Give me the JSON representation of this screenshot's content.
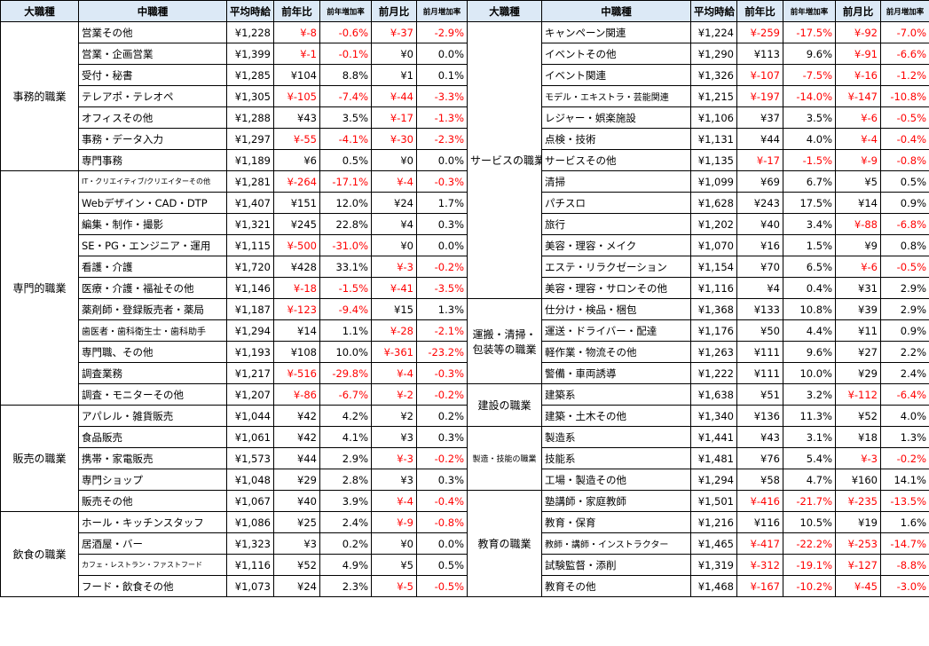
{
  "headers": {
    "major": "大職種",
    "minor": "中職種",
    "avg": "平均時給",
    "yoy": "前年比",
    "yoy_rate": "前年増加率",
    "mom": "前月比",
    "mom_rate": "前月増加率"
  },
  "left": {
    "groups": [
      {
        "category": "事務的職業",
        "span": 7,
        "rows": [
          {
            "name": "営業その他",
            "avg": "¥1,228",
            "yoy": "¥-8",
            "yoy_rate": "-0.6%",
            "mom": "¥-37",
            "mom_rate": "-2.9%"
          },
          {
            "name": "営業・企画営業",
            "avg": "¥1,399",
            "yoy": "¥-1",
            "yoy_rate": "-0.1%",
            "mom": "¥0",
            "mom_rate": "0.0%"
          },
          {
            "name": "受付・秘書",
            "avg": "¥1,285",
            "yoy": "¥104",
            "yoy_rate": "8.8%",
            "mom": "¥1",
            "mom_rate": "0.1%"
          },
          {
            "name": "テレアポ・テレオペ",
            "avg": "¥1,305",
            "yoy": "¥-105",
            "yoy_rate": "-7.4%",
            "mom": "¥-44",
            "mom_rate": "-3.3%"
          },
          {
            "name": "オフィスその他",
            "avg": "¥1,288",
            "yoy": "¥43",
            "yoy_rate": "3.5%",
            "mom": "¥-17",
            "mom_rate": "-1.3%"
          },
          {
            "name": "事務・データ入力",
            "avg": "¥1,297",
            "yoy": "¥-55",
            "yoy_rate": "-4.1%",
            "mom": "¥-30",
            "mom_rate": "-2.3%"
          },
          {
            "name": "専門事務",
            "avg": "¥1,189",
            "yoy": "¥6",
            "yoy_rate": "0.5%",
            "mom": "¥0",
            "mom_rate": "0.0%"
          }
        ]
      },
      {
        "category": "専門的職業",
        "span": 11,
        "rows": [
          {
            "name": "IT・クリエイティブ/クリエイターその他",
            "avg": "¥1,281",
            "yoy": "¥-264",
            "yoy_rate": "-17.1%",
            "mom": "¥-4",
            "mom_rate": "-0.3%",
            "size": "tiny"
          },
          {
            "name": "Webデザイン・CAD・DTP",
            "avg": "¥1,407",
            "yoy": "¥151",
            "yoy_rate": "12.0%",
            "mom": "¥24",
            "mom_rate": "1.7%"
          },
          {
            "name": "編集・制作・撮影",
            "avg": "¥1,321",
            "yoy": "¥245",
            "yoy_rate": "22.8%",
            "mom": "¥4",
            "mom_rate": "0.3%"
          },
          {
            "name": "SE・PG・エンジニア・運用",
            "avg": "¥1,115",
            "yoy": "¥-500",
            "yoy_rate": "-31.0%",
            "mom": "¥0",
            "mom_rate": "0.0%"
          },
          {
            "name": "看護・介護",
            "avg": "¥1,720",
            "yoy": "¥428",
            "yoy_rate": "33.1%",
            "mom": "¥-3",
            "mom_rate": "-0.2%"
          },
          {
            "name": "医療・介護・福祉その他",
            "avg": "¥1,146",
            "yoy": "¥-18",
            "yoy_rate": "-1.5%",
            "mom": "¥-41",
            "mom_rate": "-3.5%"
          },
          {
            "name": "薬剤師・登録販売者・薬局",
            "avg": "¥1,187",
            "yoy": "¥-123",
            "yoy_rate": "-9.4%",
            "mom": "¥15",
            "mom_rate": "1.3%"
          },
          {
            "name": "歯医者・歯科衛生士・歯科助手",
            "avg": "¥1,294",
            "yoy": "¥14",
            "yoy_rate": "1.1%",
            "mom": "¥-28",
            "mom_rate": "-2.1%",
            "size": "small"
          },
          {
            "name": "専門職、その他",
            "avg": "¥1,193",
            "yoy": "¥108",
            "yoy_rate": "10.0%",
            "mom": "¥-361",
            "mom_rate": "-23.2%"
          },
          {
            "name": "調査業務",
            "avg": "¥1,217",
            "yoy": "¥-516",
            "yoy_rate": "-29.8%",
            "mom": "¥-4",
            "mom_rate": "-0.3%"
          },
          {
            "name": "調査・モニターその他",
            "avg": "¥1,207",
            "yoy": "¥-86",
            "yoy_rate": "-6.7%",
            "mom": "¥-2",
            "mom_rate": "-0.2%"
          }
        ]
      },
      {
        "category": "販売の職業",
        "span": 5,
        "rows": [
          {
            "name": "アパレル・雑貨販売",
            "avg": "¥1,044",
            "yoy": "¥42",
            "yoy_rate": "4.2%",
            "mom": "¥2",
            "mom_rate": "0.2%"
          },
          {
            "name": "食品販売",
            "avg": "¥1,061",
            "yoy": "¥42",
            "yoy_rate": "4.1%",
            "mom": "¥3",
            "mom_rate": "0.3%"
          },
          {
            "name": "携帯・家電販売",
            "avg": "¥1,573",
            "yoy": "¥44",
            "yoy_rate": "2.9%",
            "mom": "¥-3",
            "mom_rate": "-0.2%"
          },
          {
            "name": "専門ショップ",
            "avg": "¥1,048",
            "yoy": "¥29",
            "yoy_rate": "2.8%",
            "mom": "¥3",
            "mom_rate": "0.3%"
          },
          {
            "name": "販売その他",
            "avg": "¥1,067",
            "yoy": "¥40",
            "yoy_rate": "3.9%",
            "mom": "¥-4",
            "mom_rate": "-0.4%"
          }
        ]
      },
      {
        "category": "飲食の職業",
        "span": 4,
        "rows": [
          {
            "name": "ホール・キッチンスタッフ",
            "avg": "¥1,086",
            "yoy": "¥25",
            "yoy_rate": "2.4%",
            "mom": "¥-9",
            "mom_rate": "-0.8%"
          },
          {
            "name": "居酒屋・バー",
            "avg": "¥1,323",
            "yoy": "¥3",
            "yoy_rate": "0.2%",
            "mom": "¥0",
            "mom_rate": "0.0%"
          },
          {
            "name": "カフェ・レストラン・ファストフード",
            "avg": "¥1,116",
            "yoy": "¥52",
            "yoy_rate": "4.9%",
            "mom": "¥5",
            "mom_rate": "0.5%",
            "size": "tiny"
          },
          {
            "name": "フード・飲食その他",
            "avg": "¥1,073",
            "yoy": "¥24",
            "yoy_rate": "2.3%",
            "mom": "¥-5",
            "mom_rate": "-0.5%"
          }
        ]
      }
    ]
  },
  "right": {
    "groups": [
      {
        "category": "サービスの職業",
        "span": 13,
        "rows": [
          {
            "name": "キャンペーン関連",
            "avg": "¥1,224",
            "yoy": "¥-259",
            "yoy_rate": "-17.5%",
            "mom": "¥-92",
            "mom_rate": "-7.0%"
          },
          {
            "name": "イベントその他",
            "avg": "¥1,290",
            "yoy": "¥113",
            "yoy_rate": "9.6%",
            "mom": "¥-91",
            "mom_rate": "-6.6%"
          },
          {
            "name": "イベント関連",
            "avg": "¥1,326",
            "yoy": "¥-107",
            "yoy_rate": "-7.5%",
            "mom": "¥-16",
            "mom_rate": "-1.2%"
          },
          {
            "name": "モデル・エキストラ・芸能関連",
            "avg": "¥1,215",
            "yoy": "¥-197",
            "yoy_rate": "-14.0%",
            "mom": "¥-147",
            "mom_rate": "-10.8%",
            "size": "small"
          },
          {
            "name": "レジャー・娯楽施設",
            "avg": "¥1,106",
            "yoy": "¥37",
            "yoy_rate": "3.5%",
            "mom": "¥-6",
            "mom_rate": "-0.5%"
          },
          {
            "name": "点検・技術",
            "avg": "¥1,131",
            "yoy": "¥44",
            "yoy_rate": "4.0%",
            "mom": "¥-4",
            "mom_rate": "-0.4%"
          },
          {
            "name": "サービスその他",
            "avg": "¥1,135",
            "yoy": "¥-17",
            "yoy_rate": "-1.5%",
            "mom": "¥-9",
            "mom_rate": "-0.8%"
          },
          {
            "name": "清掃",
            "avg": "¥1,099",
            "yoy": "¥69",
            "yoy_rate": "6.7%",
            "mom": "¥5",
            "mom_rate": "0.5%"
          },
          {
            "name": "パチスロ",
            "avg": "¥1,628",
            "yoy": "¥243",
            "yoy_rate": "17.5%",
            "mom": "¥14",
            "mom_rate": "0.9%"
          },
          {
            "name": "旅行",
            "avg": "¥1,202",
            "yoy": "¥40",
            "yoy_rate": "3.4%",
            "mom": "¥-88",
            "mom_rate": "-6.8%"
          },
          {
            "name": "美容・理容・メイク",
            "avg": "¥1,070",
            "yoy": "¥16",
            "yoy_rate": "1.5%",
            "mom": "¥9",
            "mom_rate": "0.8%"
          },
          {
            "name": "エステ・リラクゼーション",
            "avg": "¥1,154",
            "yoy": "¥70",
            "yoy_rate": "6.5%",
            "mom": "¥-6",
            "mom_rate": "-0.5%"
          },
          {
            "name": "美容・理容・サロンその他",
            "avg": "¥1,116",
            "yoy": "¥4",
            "yoy_rate": "0.4%",
            "mom": "¥31",
            "mom_rate": "2.9%"
          }
        ]
      },
      {
        "category": "運搬・清掃・包装等の職業",
        "span": 4,
        "rows": [
          {
            "name": "仕分け・検品・梱包",
            "avg": "¥1,368",
            "yoy": "¥133",
            "yoy_rate": "10.8%",
            "mom": "¥39",
            "mom_rate": "2.9%"
          },
          {
            "name": "運送・ドライバー・配達",
            "avg": "¥1,176",
            "yoy": "¥50",
            "yoy_rate": "4.4%",
            "mom": "¥11",
            "mom_rate": "0.9%"
          },
          {
            "name": "軽作業・物流その他",
            "avg": "¥1,263",
            "yoy": "¥111",
            "yoy_rate": "9.6%",
            "mom": "¥27",
            "mom_rate": "2.2%"
          },
          {
            "name": "警備・車両誘導",
            "avg": "¥1,222",
            "yoy": "¥111",
            "yoy_rate": "10.0%",
            "mom": "¥29",
            "mom_rate": "2.4%"
          }
        ]
      },
      {
        "category": "建設の職業",
        "span": 2,
        "rows": [
          {
            "name": "建築系",
            "avg": "¥1,638",
            "yoy": "¥51",
            "yoy_rate": "3.2%",
            "mom": "¥-112",
            "mom_rate": "-6.4%"
          },
          {
            "name": "建築・土木その他",
            "avg": "¥1,340",
            "yoy": "¥136",
            "yoy_rate": "11.3%",
            "mom": "¥52",
            "mom_rate": "4.0%"
          }
        ]
      },
      {
        "category": "製造・技能の職業",
        "span": 3,
        "size": "tiny",
        "rows": [
          {
            "name": "製造系",
            "avg": "¥1,441",
            "yoy": "¥43",
            "yoy_rate": "3.1%",
            "mom": "¥18",
            "mom_rate": "1.3%"
          },
          {
            "name": "技能系",
            "avg": "¥1,481",
            "yoy": "¥76",
            "yoy_rate": "5.4%",
            "mom": "¥-3",
            "mom_rate": "-0.2%"
          },
          {
            "name": "工場・製造その他",
            "avg": "¥1,294",
            "yoy": "¥58",
            "yoy_rate": "4.7%",
            "mom": "¥160",
            "mom_rate": "14.1%"
          }
        ]
      },
      {
        "category": "教育の職業",
        "span": 5,
        "rows": [
          {
            "name": "塾講師・家庭教師",
            "avg": "¥1,501",
            "yoy": "¥-416",
            "yoy_rate": "-21.7%",
            "mom": "¥-235",
            "mom_rate": "-13.5%"
          },
          {
            "name": "教育・保育",
            "avg": "¥1,216",
            "yoy": "¥116",
            "yoy_rate": "10.5%",
            "mom": "¥19",
            "mom_rate": "1.6%"
          },
          {
            "name": "教師・講師・インストラクター",
            "avg": "¥1,465",
            "yoy": "¥-417",
            "yoy_rate": "-22.2%",
            "mom": "¥-253",
            "mom_rate": "-14.7%",
            "size": "small"
          },
          {
            "name": "試験監督・添削",
            "avg": "¥1,319",
            "yoy": "¥-312",
            "yoy_rate": "-19.1%",
            "mom": "¥-127",
            "mom_rate": "-8.8%"
          },
          {
            "name": "教育その他",
            "avg": "¥1,468",
            "yoy": "¥-167",
            "yoy_rate": "-10.2%",
            "mom": "¥-45",
            "mom_rate": "-3.0%"
          }
        ]
      }
    ]
  }
}
